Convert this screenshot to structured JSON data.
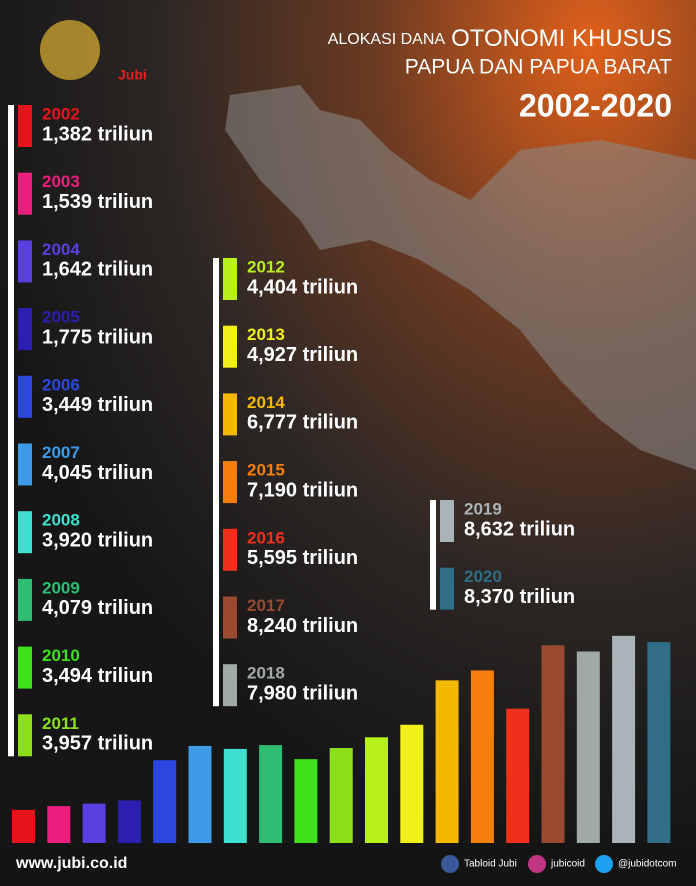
{
  "chart_data": {
    "type": "bar",
    "title": [
      "ALOKASI DANA",
      "OTONOMI KHUSUS",
      "PAPUA DAN PAPUA BARAT"
    ],
    "subtitle": "2002-2020",
    "logo": "Jubi",
    "categories": [
      "2002",
      "2003",
      "2004",
      "2005",
      "2006",
      "2007",
      "2008",
      "2009",
      "2010",
      "2011",
      "2012",
      "2013",
      "2014",
      "2015",
      "2016",
      "2017",
      "2018",
      "2019",
      "2020"
    ],
    "values": [
      1.382,
      1.539,
      1.642,
      1.775,
      3.449,
      4.045,
      3.92,
      4.079,
      3.494,
      3.957,
      4.404,
      4.927,
      6.777,
      7.19,
      5.595,
      8.24,
      7.98,
      8.632,
      8.37
    ],
    "value_labels": [
      "1,382 triliun",
      "1,539 triliun",
      "1,642 triliun",
      "1,775 triliun",
      "3,449 triliun",
      "4,045 triliun",
      "3,920 triliun",
      "4,079 triliun",
      "3,494 triliun",
      "3,957 triliun",
      "4,404 triliun",
      "4,927 triliun",
      "6,777 triliun",
      "7,190 triliun",
      "5,595 triliun",
      "8,240 triliun",
      "7,980 triliun",
      "8,632 triliun",
      "8,370 triliun"
    ],
    "colors": [
      "#e8141c",
      "#ec1f7e",
      "#5a3ee0",
      "#2a1fb0",
      "#2b47e0",
      "#3d9be8",
      "#3fe0d0",
      "#2ebd73",
      "#3ee01a",
      "#8ce01a",
      "#b8f01a",
      "#f0f01a",
      "#f5b800",
      "#f57f0a",
      "#f0301a",
      "#9a4a2e",
      "#a0a8a8",
      "#a8b4b8",
      "#2f6e86"
    ]
  },
  "footer": {
    "website": "www.jubi.co.id",
    "facebook": "Tabloid Jubi",
    "instagram": "jubicoid",
    "twitter": "@jubidotcom"
  }
}
